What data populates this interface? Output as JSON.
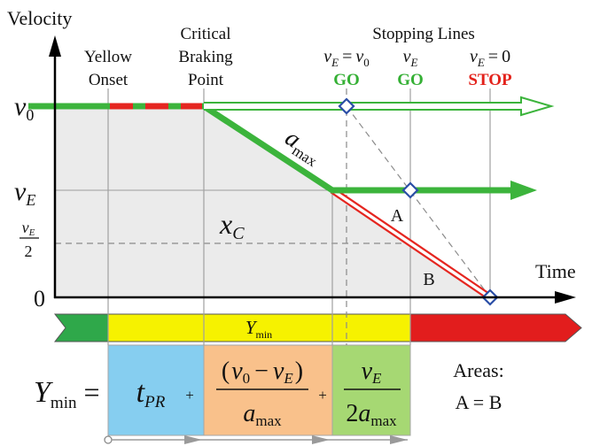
{
  "axes": {
    "y_title": "Velocity",
    "x_title": "Time",
    "zero": "0",
    "v0": {
      "v": "v",
      "sub": "0"
    },
    "vE": {
      "v": "v",
      "sub": "E"
    },
    "vE_half": {
      "v": "v",
      "sub": "E",
      "den": "2"
    }
  },
  "phase_labels": {
    "yellow_onset": [
      "Yellow",
      "Onset"
    ],
    "critical_braking_point": [
      "Critical",
      "Braking",
      "Point"
    ]
  },
  "stopping_lines": {
    "title": "Stopping Lines",
    "line_1": {
      "v": "v",
      "sub": "E",
      "eq": "=",
      "rhs_v": "v",
      "rhs_sub": "0",
      "decision": "GO",
      "decision_color": "#35b035"
    },
    "line_2": {
      "v": "v",
      "sub": "E",
      "decision": "GO",
      "decision_color": "#35b035"
    },
    "line_3": {
      "v": "v",
      "sub": "E",
      "eq": "=",
      "rhs": "0",
      "decision": "STOP",
      "decision_color": "#e3221b"
    }
  },
  "curve_labels": {
    "deceleration": {
      "a": "a",
      "sub": "max"
    },
    "distance": {
      "x": "x",
      "sub": "C"
    },
    "area_a": "A",
    "area_b": "B"
  },
  "timeline_bar": {
    "label": {
      "y": "Y",
      "sub": "min"
    },
    "green": "#2fa84a",
    "yellow": "#f6f200",
    "red": "#e21d1d"
  },
  "formula": {
    "lhs": {
      "y": "Y",
      "sub": "min",
      "eq": "="
    },
    "term_1": {
      "t": "t",
      "sub": "PR",
      "plus": "+",
      "box_color": "#86cef0"
    },
    "term_2": {
      "open": "(",
      "v1": "v",
      "s1": "0",
      "minus": "−",
      "v2": "v",
      "s2": "E",
      "close": ")",
      "a": "a",
      "a_sub": "max",
      "plus": "+",
      "box_color": "#f9c18b"
    },
    "term_3": {
      "v": "v",
      "v_sub": "E",
      "two": "2",
      "a": "a",
      "a_sub": "max",
      "box_color": "#a6d873"
    }
  },
  "areas_note": {
    "title": "Areas:",
    "equation": "A = B"
  },
  "colors": {
    "trajectory": "#3cb43c",
    "braking": "#e52620",
    "markers": "#2a4ea6",
    "shaded_area": "#ebebeb"
  }
}
